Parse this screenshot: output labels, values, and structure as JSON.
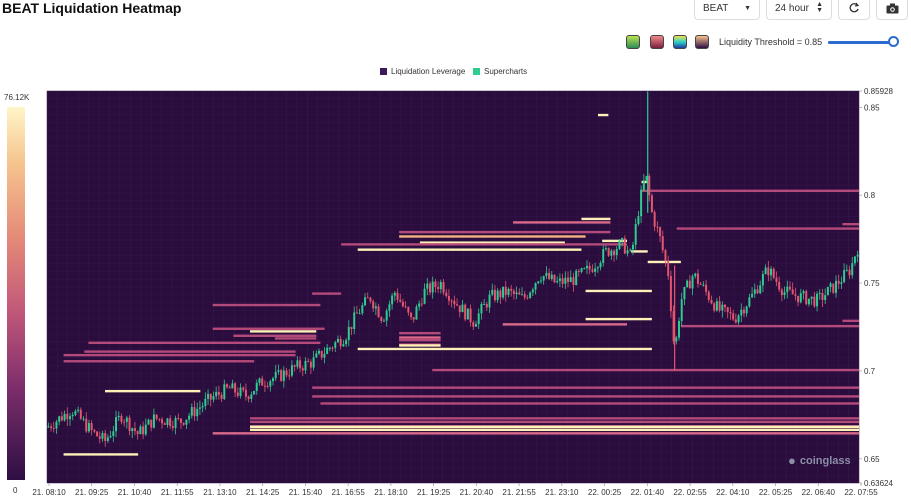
{
  "header": {
    "title": "BEAT Liquidation Heatmap",
    "symbol_select": "BEAT",
    "range_select": "24 hour",
    "refresh_icon": "refresh-icon",
    "camera_icon": "camera-icon"
  },
  "palettes": [
    {
      "name": "palette-green",
      "colors": [
        "#2e8b57",
        "#b7e34f"
      ]
    },
    {
      "name": "palette-red",
      "colors": [
        "#7a1f3d",
        "#f08a8a"
      ]
    },
    {
      "name": "palette-rainbow",
      "colors": [
        "#1e3c9e",
        "#2ed1c8",
        "#f4e04d"
      ]
    },
    {
      "name": "palette-purple",
      "colors": [
        "#2e0f45",
        "#f6c48e"
      ]
    }
  ],
  "threshold": {
    "label": "Liquidity Threshold = 0.85",
    "value": 0.85
  },
  "legend": [
    {
      "label": "Liquidation Leverage",
      "color": "#3b1a5a"
    },
    {
      "label": "Supercharts",
      "color": "#2ecc91"
    }
  ],
  "colorbar": {
    "max_label": "76.12K",
    "min_label": "0"
  },
  "watermark": "coinglass",
  "chart_data": {
    "type": "heatmap",
    "ylim": [
      0.63624,
      0.85928
    ],
    "y_ticks": [
      "0.85928",
      "0.85",
      "0.8",
      "0.75",
      "0.7",
      "0.65",
      "0.63624"
    ],
    "y_tick_values": [
      0.85928,
      0.85,
      0.8,
      0.75,
      0.7,
      0.65,
      0.63624
    ],
    "x_ticks": [
      "21. 08:10",
      "21. 09:25",
      "21. 10:40",
      "21. 11:55",
      "21. 13:10",
      "21. 14:25",
      "21. 15:40",
      "21. 16:55",
      "21. 18:10",
      "21. 19:25",
      "21. 20:40",
      "21. 21:55",
      "21. 23:10",
      "22. 00:25",
      "22. 01:40",
      "22. 02:55",
      "22. 04:10",
      "22. 05:25",
      "22. 06:40",
      "22. 07:55"
    ],
    "price_path": [
      {
        "t": 0.0,
        "p": 0.668
      },
      {
        "t": 0.6,
        "p": 0.678
      },
      {
        "t": 1.1,
        "p": 0.665
      },
      {
        "t": 1.4,
        "p": 0.66
      },
      {
        "t": 1.8,
        "p": 0.675
      },
      {
        "t": 2.2,
        "p": 0.664
      },
      {
        "t": 2.6,
        "p": 0.673
      },
      {
        "t": 3.2,
        "p": 0.671
      },
      {
        "t": 3.6,
        "p": 0.678
      },
      {
        "t": 4.0,
        "p": 0.685
      },
      {
        "t": 4.4,
        "p": 0.69
      },
      {
        "t": 4.8,
        "p": 0.686
      },
      {
        "t": 5.2,
        "p": 0.694
      },
      {
        "t": 5.6,
        "p": 0.697
      },
      {
        "t": 6.0,
        "p": 0.702
      },
      {
        "t": 6.4,
        "p": 0.705
      },
      {
        "t": 6.8,
        "p": 0.713
      },
      {
        "t": 7.2,
        "p": 0.72
      },
      {
        "t": 7.5,
        "p": 0.733
      },
      {
        "t": 7.8,
        "p": 0.742
      },
      {
        "t": 8.1,
        "p": 0.73
      },
      {
        "t": 8.4,
        "p": 0.745
      },
      {
        "t": 8.8,
        "p": 0.728
      },
      {
        "t": 9.1,
        "p": 0.745
      },
      {
        "t": 9.5,
        "p": 0.75
      },
      {
        "t": 9.9,
        "p": 0.738
      },
      {
        "t": 10.3,
        "p": 0.728
      },
      {
        "t": 10.7,
        "p": 0.742
      },
      {
        "t": 11.1,
        "p": 0.745
      },
      {
        "t": 11.5,
        "p": 0.741
      },
      {
        "t": 11.9,
        "p": 0.755
      },
      {
        "t": 12.3,
        "p": 0.75
      },
      {
        "t": 12.7,
        "p": 0.752
      },
      {
        "t": 13.1,
        "p": 0.758
      },
      {
        "t": 13.5,
        "p": 0.768
      },
      {
        "t": 13.9,
        "p": 0.772
      },
      {
        "t": 14.1,
        "p": 0.765
      },
      {
        "t": 14.3,
        "p": 0.795
      },
      {
        "t": 14.45,
        "p": 0.812
      },
      {
        "t": 14.6,
        "p": 0.79
      },
      {
        "t": 14.8,
        "p": 0.775
      },
      {
        "t": 15.0,
        "p": 0.755
      },
      {
        "t": 15.15,
        "p": 0.71
      },
      {
        "t": 15.3,
        "p": 0.74
      },
      {
        "t": 15.6,
        "p": 0.755
      },
      {
        "t": 15.9,
        "p": 0.745
      },
      {
        "t": 16.2,
        "p": 0.735
      },
      {
        "t": 16.6,
        "p": 0.73
      },
      {
        "t": 17.0,
        "p": 0.742
      },
      {
        "t": 17.4,
        "p": 0.758
      },
      {
        "t": 17.8,
        "p": 0.745
      },
      {
        "t": 18.2,
        "p": 0.742
      },
      {
        "t": 18.6,
        "p": 0.74
      },
      {
        "t": 19.0,
        "p": 0.748
      },
      {
        "t": 19.4,
        "p": 0.758
      },
      {
        "t": 19.55,
        "p": 0.77
      }
    ],
    "spike": {
      "t": 14.5,
      "high": 0.859,
      "low": 0.7
    },
    "liquidity_levels": [
      {
        "price": 0.8456,
        "t_start": 13.3,
        "t_end": 13.55,
        "intensity": 1.0
      },
      {
        "price": 0.8075,
        "t_start": 14.35,
        "t_end": 14.5,
        "intensity": 0.9
      },
      {
        "price": 0.8025,
        "t_start": 14.35,
        "t_end": 19.6,
        "intensity": 0.55
      },
      {
        "price": 0.7865,
        "t_start": 12.9,
        "t_end": 13.6,
        "intensity": 0.95
      },
      {
        "price": 0.7845,
        "t_start": 11.25,
        "t_end": 13.6,
        "intensity": 0.6
      },
      {
        "price": 0.7835,
        "t_start": 19.2,
        "t_end": 19.6,
        "intensity": 0.5
      },
      {
        "price": 0.781,
        "t_start": 15.2,
        "t_end": 19.6,
        "intensity": 0.55
      },
      {
        "price": 0.779,
        "t_start": 8.5,
        "t_end": 13.6,
        "intensity": 0.55
      },
      {
        "price": 0.7765,
        "t_start": 8.5,
        "t_end": 13.0,
        "intensity": 0.8
      },
      {
        "price": 0.774,
        "t_start": 13.4,
        "t_end": 14.0,
        "intensity": 0.9
      },
      {
        "price": 0.773,
        "t_start": 9.0,
        "t_end": 12.5,
        "intensity": 0.9
      },
      {
        "price": 0.772,
        "t_start": 7.1,
        "t_end": 14.0,
        "intensity": 0.5
      },
      {
        "price": 0.769,
        "t_start": 7.5,
        "t_end": 12.9,
        "intensity": 1.0
      },
      {
        "price": 0.768,
        "t_start": 14.1,
        "t_end": 14.5,
        "intensity": 0.95
      },
      {
        "price": 0.762,
        "t_start": 14.5,
        "t_end": 15.3,
        "intensity": 0.95
      },
      {
        "price": 0.7455,
        "t_start": 13.0,
        "t_end": 14.6,
        "intensity": 0.95
      },
      {
        "price": 0.744,
        "t_start": 6.4,
        "t_end": 7.1,
        "intensity": 0.5
      },
      {
        "price": 0.7375,
        "t_start": 4.0,
        "t_end": 6.6,
        "intensity": 0.5
      },
      {
        "price": 0.7295,
        "t_start": 13.0,
        "t_end": 14.6,
        "intensity": 1.0
      },
      {
        "price": 0.7285,
        "t_start": 19.2,
        "t_end": 19.6,
        "intensity": 0.5
      },
      {
        "price": 0.7265,
        "t_start": 11.0,
        "t_end": 14.0,
        "intensity": 0.6
      },
      {
        "price": 0.7255,
        "t_start": 15.3,
        "t_end": 19.6,
        "intensity": 0.55
      },
      {
        "price": 0.724,
        "t_start": 4.0,
        "t_end": 6.7,
        "intensity": 0.55
      },
      {
        "price": 0.7225,
        "t_start": 4.9,
        "t_end": 6.5,
        "intensity": 0.9
      },
      {
        "price": 0.7215,
        "t_start": 8.5,
        "t_end": 9.5,
        "intensity": 0.5
      },
      {
        "price": 0.72,
        "t_start": 4.5,
        "t_end": 6.5,
        "intensity": 0.5
      },
      {
        "price": 0.719,
        "t_start": 8.5,
        "t_end": 9.5,
        "intensity": 0.6
      },
      {
        "price": 0.7185,
        "t_start": 5.5,
        "t_end": 6.5,
        "intensity": 0.5
      },
      {
        "price": 0.718,
        "t_start": 8.5,
        "t_end": 9.5,
        "intensity": 0.5
      },
      {
        "price": 0.7175,
        "t_start": 8.5,
        "t_end": 9.5,
        "intensity": 0.5
      },
      {
        "price": 0.716,
        "t_start": 1.0,
        "t_end": 6.6,
        "intensity": 0.5
      },
      {
        "price": 0.715,
        "t_start": 8.5,
        "t_end": 9.5,
        "intensity": 0.5
      },
      {
        "price": 0.7145,
        "t_start": 8.5,
        "t_end": 9.5,
        "intensity": 0.95
      },
      {
        "price": 0.7125,
        "t_start": 7.5,
        "t_end": 14.6,
        "intensity": 0.95
      },
      {
        "price": 0.711,
        "t_start": 0.9,
        "t_end": 6.0,
        "intensity": 0.5
      },
      {
        "price": 0.709,
        "t_start": 0.4,
        "t_end": 6.0,
        "intensity": 0.5
      },
      {
        "price": 0.7055,
        "t_start": 0.4,
        "t_end": 5.0,
        "intensity": 0.5
      },
      {
        "price": 0.7005,
        "t_start": 9.3,
        "t_end": 19.6,
        "intensity": 0.55
      },
      {
        "price": 0.6905,
        "t_start": 6.4,
        "t_end": 19.6,
        "intensity": 0.5
      },
      {
        "price": 0.6885,
        "t_start": 1.4,
        "t_end": 3.7,
        "intensity": 0.9
      },
      {
        "price": 0.6855,
        "t_start": 6.4,
        "t_end": 19.6,
        "intensity": 0.5
      },
      {
        "price": 0.6815,
        "t_start": 6.6,
        "t_end": 19.6,
        "intensity": 0.5
      },
      {
        "price": 0.673,
        "t_start": 4.9,
        "t_end": 19.6,
        "intensity": 0.55
      },
      {
        "price": 0.671,
        "t_start": 4.9,
        "t_end": 19.6,
        "intensity": 0.5
      },
      {
        "price": 0.6685,
        "t_start": 4.9,
        "t_end": 19.6,
        "intensity": 0.55
      },
      {
        "price": 0.6682,
        "t_start": 4.9,
        "t_end": 19.6,
        "intensity": 1.0
      },
      {
        "price": 0.6665,
        "t_start": 4.9,
        "t_end": 19.6,
        "intensity": 0.95
      },
      {
        "price": 0.6645,
        "t_start": 4.0,
        "t_end": 19.6,
        "intensity": 0.6
      },
      {
        "price": 0.6525,
        "t_start": 0.4,
        "t_end": 2.2,
        "intensity": 0.9
      }
    ]
  }
}
